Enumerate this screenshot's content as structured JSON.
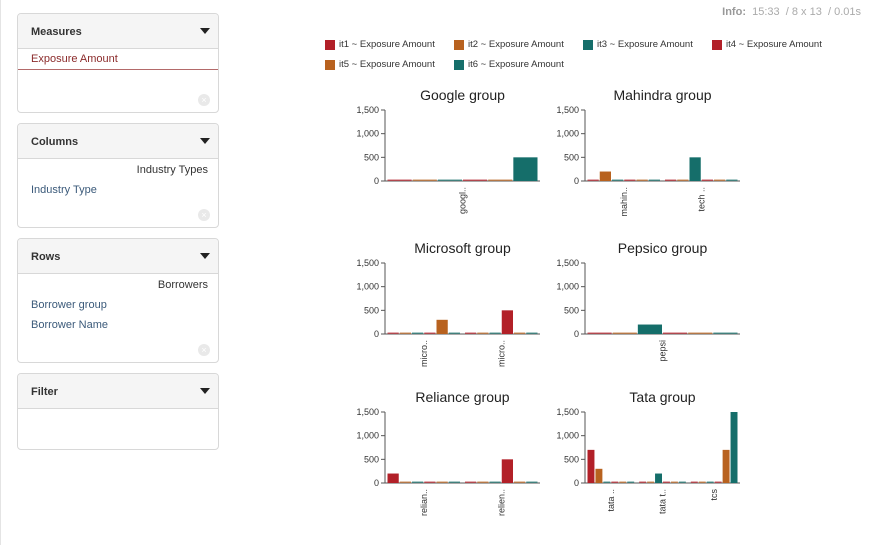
{
  "info": {
    "label": "Info:",
    "time": "15:33",
    "dims": "8 x 13",
    "duration": "0.01s"
  },
  "measures": {
    "title": "Measures",
    "item": "Exposure Amount"
  },
  "columns": {
    "title": "Columns",
    "header_label": "Industry Types",
    "items": [
      "Industry Type"
    ]
  },
  "rows": {
    "title": "Rows",
    "header_label": "Borrowers",
    "items": [
      "Borrower group",
      "Borrower Name"
    ]
  },
  "filter": {
    "title": "Filter"
  },
  "icons": {
    "caret": "caret-down-icon",
    "clear": "clear-circle-icon"
  },
  "legend": [
    {
      "label": "it1 ~ Exposure Amount",
      "color": "#b22028"
    },
    {
      "label": "it2 ~ Exposure Amount",
      "color": "#b8621f"
    },
    {
      "label": "it3 ~ Exposure Amount",
      "color": "#156e6a"
    },
    {
      "label": "it4 ~ Exposure Amount",
      "color": "#b22028"
    },
    {
      "label": "it5 ~ Exposure Amount",
      "color": "#b8621f"
    },
    {
      "label": "it6 ~ Exposure Amount",
      "color": "#156e6a"
    }
  ],
  "chart_data": [
    {
      "type": "bar",
      "title": "Google group",
      "ylim": [
        0,
        1500
      ],
      "yticks": [
        "0",
        "500",
        "1,000",
        "1,500"
      ],
      "categories": [
        "googl.."
      ],
      "series_colors": [
        "#b22028",
        "#b8621f",
        "#156e6a",
        "#b22028",
        "#b8621f",
        "#156e6a"
      ],
      "values": [
        [
          0,
          0,
          0,
          0,
          0,
          500
        ]
      ]
    },
    {
      "type": "bar",
      "title": "Mahindra group",
      "ylim": [
        0,
        1500
      ],
      "yticks": [
        "0",
        "500",
        "1,000",
        "1,500"
      ],
      "categories": [
        "mahin..",
        "tech .."
      ],
      "series_colors": [
        "#b22028",
        "#b8621f",
        "#156e6a",
        "#b22028",
        "#b8621f",
        "#156e6a"
      ],
      "values": [
        [
          0,
          200,
          0,
          0,
          0,
          0
        ],
        [
          0,
          0,
          500,
          0,
          0,
          0
        ]
      ]
    },
    {
      "type": "bar",
      "title": "Microsoft group",
      "ylim": [
        0,
        1500
      ],
      "yticks": [
        "0",
        "500",
        "1,000",
        "1,500"
      ],
      "categories": [
        "micro..",
        "micro.."
      ],
      "series_colors": [
        "#b22028",
        "#b8621f",
        "#156e6a",
        "#b22028",
        "#b8621f",
        "#156e6a"
      ],
      "values": [
        [
          0,
          0,
          0,
          0,
          300,
          0
        ],
        [
          0,
          0,
          0,
          500,
          0,
          0
        ]
      ]
    },
    {
      "type": "bar",
      "title": "Pepsico group",
      "ylim": [
        0,
        1500
      ],
      "yticks": [
        "0",
        "500",
        "1,000",
        "1,500"
      ],
      "categories": [
        "pepsi"
      ],
      "series_colors": [
        "#b22028",
        "#b8621f",
        "#156e6a",
        "#b22028",
        "#b8621f",
        "#156e6a"
      ],
      "values": [
        [
          0,
          0,
          200,
          0,
          0,
          0
        ]
      ]
    },
    {
      "type": "bar",
      "title": "Reliance group",
      "ylim": [
        0,
        1500
      ],
      "yticks": [
        "0",
        "500",
        "1,000",
        "1,500"
      ],
      "categories": [
        "relian..",
        "relien.."
      ],
      "series_colors": [
        "#b22028",
        "#b8621f",
        "#156e6a",
        "#b22028",
        "#b8621f",
        "#156e6a"
      ],
      "values": [
        [
          200,
          0,
          0,
          0,
          0,
          0
        ],
        [
          0,
          0,
          0,
          500,
          0,
          0
        ]
      ]
    },
    {
      "type": "bar",
      "title": "Tata group",
      "ylim": [
        0,
        1500
      ],
      "yticks": [
        "0",
        "500",
        "1,000",
        "1,500"
      ],
      "categories": [
        "tata ..",
        "tata t..",
        "tcs"
      ],
      "series_colors": [
        "#b22028",
        "#b8621f",
        "#156e6a",
        "#b22028",
        "#b8621f",
        "#156e6a"
      ],
      "values": [
        [
          700,
          300,
          0,
          0,
          0,
          0
        ],
        [
          0,
          0,
          200,
          0,
          0,
          0
        ],
        [
          0,
          0,
          0,
          0,
          700,
          1500
        ]
      ]
    }
  ]
}
